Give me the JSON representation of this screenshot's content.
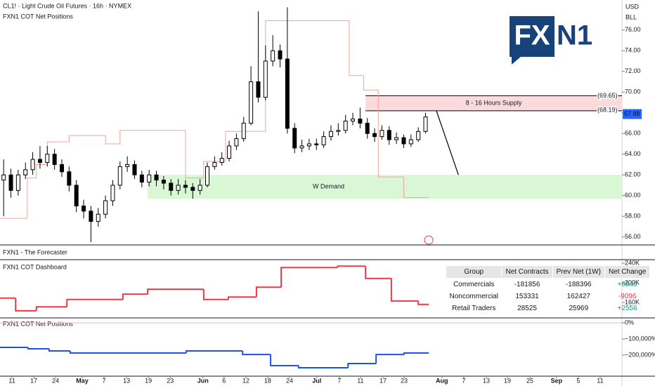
{
  "header": {
    "currency": "USD",
    "unit": "BLL",
    "logo_left": "FX",
    "logo_right": "N1",
    "collapsed_pane": "FXN1 - The Forecaster"
  },
  "table": {
    "columns": [
      "Group",
      "Net Contracts",
      "Prev Net (1W)",
      "Net Change"
    ],
    "rows": [
      [
        "Commercials",
        "-181856",
        "-188396",
        "+6540"
      ],
      [
        "Noncommercial",
        "153331",
        "162427",
        "-9096"
      ],
      [
        "Retail Traders",
        "28525",
        "25969",
        "+2556"
      ]
    ]
  },
  "chart_data": [
    {
      "type": "candlestick",
      "title": "CL1! · Light Crude Oil Futures · 16h · NYMEX",
      "subtitle": "FXN1 COT Net Positions",
      "xlim": [
        0,
        171
      ],
      "ylim": [
        55.3,
        78.9
      ],
      "xticks": [
        {
          "value": 3.3,
          "label": "11"
        },
        {
          "value": 9.3,
          "label": "17"
        },
        {
          "value": 15.3,
          "label": "24"
        },
        {
          "value": 22.6,
          "label": "May"
        },
        {
          "value": 28.6,
          "label": "7"
        },
        {
          "value": 34.8,
          "label": "13"
        },
        {
          "value": 40.8,
          "label": "19"
        },
        {
          "value": 46.8,
          "label": "23"
        },
        {
          "value": 55.8,
          "label": "Jun"
        },
        {
          "value": 61.6,
          "label": "6"
        },
        {
          "value": 67.6,
          "label": "12"
        },
        {
          "value": 73.6,
          "label": "18"
        },
        {
          "value": 79.6,
          "label": "24"
        },
        {
          "value": 87.1,
          "label": "Jul"
        },
        {
          "value": 93.3,
          "label": "7"
        },
        {
          "value": 99.1,
          "label": "11"
        },
        {
          "value": 105.3,
          "label": "17"
        },
        {
          "value": 111.1,
          "label": "23"
        },
        {
          "value": 121.5,
          "label": "Aug"
        },
        {
          "value": 127.5,
          "label": "7"
        },
        {
          "value": 133.7,
          "label": "13"
        },
        {
          "value": 139.5,
          "label": "19"
        },
        {
          "value": 145.7,
          "label": "25"
        },
        {
          "value": 153,
          "label": "Sep"
        },
        {
          "value": 159,
          "label": "5"
        },
        {
          "value": 165,
          "label": "11"
        }
      ],
      "yticks": [
        {
          "value": 56,
          "label": "56.00"
        },
        {
          "value": 58,
          "label": "58.00"
        },
        {
          "value": 60,
          "label": "60.00"
        },
        {
          "value": 62,
          "label": "62.00"
        },
        {
          "value": 64,
          "label": "64.00"
        },
        {
          "value": 66,
          "label": "66.00"
        },
        {
          "value": 68,
          "label": "68.00"
        },
        {
          "value": 70,
          "label": "70.00"
        },
        {
          "value": 72,
          "label": "72.00"
        },
        {
          "value": 74,
          "label": "74.00"
        },
        {
          "value": 76,
          "label": "76.00"
        }
      ],
      "x": [
        1,
        3,
        5,
        7,
        9,
        11,
        13,
        15,
        17,
        19,
        21,
        23,
        25,
        27,
        29,
        31,
        33,
        35,
        37,
        39,
        41,
        43,
        45,
        47,
        49,
        51,
        53,
        55,
        57,
        59,
        61,
        63,
        65,
        67,
        69,
        71,
        73,
        75,
        77,
        79,
        81,
        83,
        85,
        87,
        89,
        91,
        93,
        95,
        97,
        99,
        101,
        103,
        105,
        107,
        109,
        111,
        113,
        115,
        117
      ],
      "open": [
        61.5,
        62,
        60.5,
        62,
        62.5,
        63.5,
        63.2,
        64,
        63,
        62.3,
        61,
        59,
        58.5,
        57.5,
        58.2,
        59.5,
        61,
        62.8,
        63,
        62,
        61.3,
        62,
        61.5,
        61.2,
        60.5,
        61,
        60.8,
        60.5,
        61,
        62.8,
        63.2,
        63.6,
        64.8,
        65.5,
        67,
        71,
        69.5,
        73,
        74,
        73.2,
        66.5,
        64.6,
        64.8,
        65,
        64.9,
        65.7,
        66.2,
        66.3,
        67.2,
        67.4,
        67,
        66,
        65.7,
        66.3,
        65.4,
        65.6,
        65,
        65.4,
        66.2
      ],
      "high": [
        63.5,
        62.6,
        62.5,
        63.2,
        64.2,
        64.8,
        64.8,
        64.5,
        63.5,
        62.8,
        61.5,
        59.6,
        59,
        58.8,
        60,
        61.5,
        63.3,
        63.8,
        63.4,
        62.4,
        62.5,
        62.4,
        61.9,
        61.6,
        61.6,
        61.5,
        61.2,
        61.6,
        63.2,
        63.8,
        64.2,
        65.3,
        66,
        67.6,
        72.5,
        77.8,
        74.5,
        75.5,
        74.6,
        78.2,
        67,
        65.4,
        65.5,
        65.5,
        66.2,
        66.8,
        67,
        67.8,
        68,
        68.5,
        67.5,
        66.5,
        66.8,
        66.7,
        66.1,
        65.9,
        65.9,
        66.6,
        68
      ],
      "low": [
        58,
        59.8,
        60,
        61.6,
        62,
        62.6,
        62.8,
        62.5,
        61.8,
        60.4,
        58.4,
        57.8,
        55.5,
        57,
        57.8,
        59,
        60.6,
        62.3,
        61.6,
        60.8,
        60.9,
        60.9,
        60.6,
        60,
        60.1,
        60.2,
        59.7,
        60.1,
        60.8,
        62.5,
        62.9,
        63.3,
        64.4,
        65.2,
        66.8,
        69,
        69.2,
        72.5,
        72.4,
        66,
        64.1,
        64.2,
        64.4,
        64.4,
        64.6,
        65.3,
        65.8,
        66,
        66.8,
        66.5,
        65.5,
        65.2,
        65.4,
        64.9,
        65,
        64.6,
        64.7,
        65.2,
        66
      ],
      "close": [
        62,
        60.5,
        62,
        62.5,
        63.5,
        63.2,
        64,
        63,
        62.3,
        61,
        59,
        58.5,
        57.5,
        58.2,
        59.5,
        61,
        62.8,
        63,
        62,
        61.3,
        62,
        61.5,
        61.2,
        60.5,
        61,
        60.8,
        60.5,
        61,
        62.8,
        63.2,
        63.6,
        64.8,
        65.5,
        67,
        71,
        69.5,
        73,
        74,
        73.2,
        66.5,
        64.6,
        64.8,
        65,
        64.9,
        65.7,
        66.2,
        66.3,
        67.2,
        67.4,
        67,
        66,
        65.7,
        66.3,
        65.4,
        65.6,
        65,
        65.4,
        66.2,
        67.6
      ],
      "up_color": "#ffffff",
      "down_color": "#000000",
      "overlay": {
        "color": "#f6a29c",
        "x": [
          0,
          7.5,
          10,
          13,
          19,
          29,
          33,
          51,
          56,
          62,
          73,
          96,
          100,
          104,
          111,
          118
        ],
        "values": [
          57.8,
          61.7,
          63,
          65.2,
          65.8,
          65,
          66.3,
          61.7,
          63.3,
          66.2,
          76.9,
          71.6,
          70.2,
          61.8,
          59.8,
          59.8
        ]
      },
      "zones": [
        {
          "label": "8 - 16 Hours Supply",
          "color": "#fadbdb",
          "x0": 100.5,
          "range": [
            {
              "value": 68.19,
              "label": "(68.19)"
            },
            {
              "value": 69.65,
              "label": "(69.65)"
            }
          ]
        },
        {
          "label": "W Demand",
          "color": "#d9f7d4",
          "x0": 40.6,
          "range": [
            59.7,
            62
          ]
        }
      ],
      "last_price": 67.88
    },
    {
      "type": "step",
      "title": "FXN1 COT Dashboard",
      "xlim": [
        0,
        171
      ],
      "ylim": [
        130000,
        244300
      ],
      "yticks": [
        {
          "value": 160000,
          "label": "160K"
        },
        {
          "value": 200000,
          "label": "200K"
        },
        {
          "value": 240000,
          "label": "240K"
        }
      ],
      "x": [
        0,
        4.3,
        10,
        18.4,
        33.8,
        40.6,
        56,
        62.8,
        70.5,
        77.3,
        92.8,
        100.5,
        107.6,
        115,
        117.9
      ],
      "values": [
        169000,
        143000,
        151000,
        166000,
        177000,
        187000,
        166000,
        171000,
        191000,
        231000,
        234000,
        209000,
        163000,
        156000,
        156000
      ],
      "color": "#f23645"
    },
    {
      "type": "step",
      "title": "FXN1 COT Net Positions",
      "xlim": [
        0,
        171
      ],
      "ylim": [
        -326000,
        21700
      ],
      "yticks": [
        {
          "value": -200000,
          "label": "−200,000%"
        },
        {
          "value": -100000,
          "label": "−100,000%"
        },
        {
          "value": 0,
          "label": "0%"
        }
      ],
      "hline": 0,
      "hline_color": "#f7b3b0",
      "x": [
        0,
        7.7,
        13.5,
        19.3,
        51.2,
        66.7,
        74.4,
        82.1,
        95.7,
        103.4,
        111.1,
        117.9
      ],
      "values": [
        -152000,
        -161000,
        -174000,
        -187000,
        -174000,
        -196000,
        -265000,
        -278000,
        -252000,
        -196000,
        -187000,
        -187000
      ],
      "color": "#1e53e5"
    }
  ]
}
